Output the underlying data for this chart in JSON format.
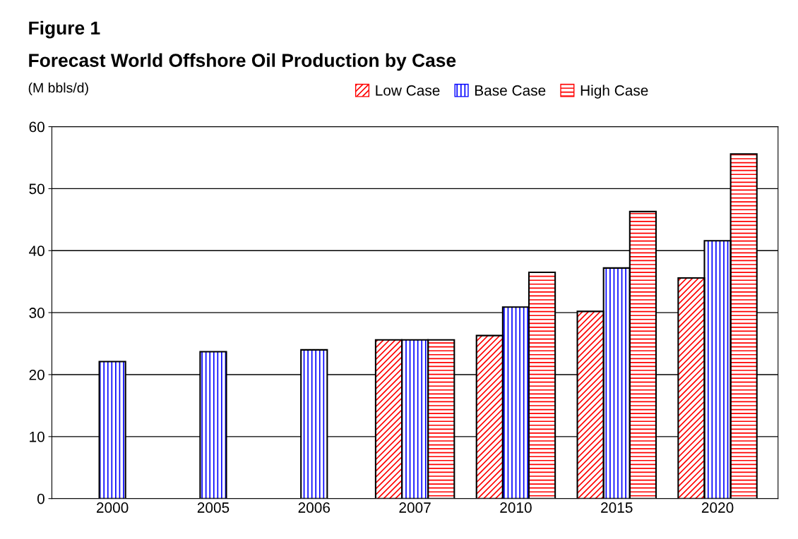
{
  "chart_data": {
    "type": "bar",
    "title": "Figure 1",
    "subtitle": "Forecast World Offshore Oil Production by Case",
    "ylabel": "(M bbls/d)",
    "categories": [
      "2000",
      "2005",
      "2006",
      "2007",
      "2010",
      "2015",
      "2020"
    ],
    "series": [
      {
        "name": "Low Case",
        "color": "#ff0000",
        "values": [
          null,
          null,
          null,
          25.6,
          26.3,
          30.2,
          35.6
        ]
      },
      {
        "name": "Base Case",
        "color": "#0000ff",
        "values": [
          22.1,
          23.7,
          24.0,
          25.6,
          30.9,
          37.2,
          41.6
        ]
      },
      {
        "name": "High Case",
        "color": "#ff0000",
        "values": [
          null,
          null,
          null,
          25.6,
          36.5,
          46.3,
          55.6
        ]
      }
    ],
    "ylim": [
      0,
      60
    ],
    "yticks": [
      0,
      10,
      20,
      30,
      40,
      50,
      60
    ],
    "grid": "y",
    "legend": "top"
  }
}
